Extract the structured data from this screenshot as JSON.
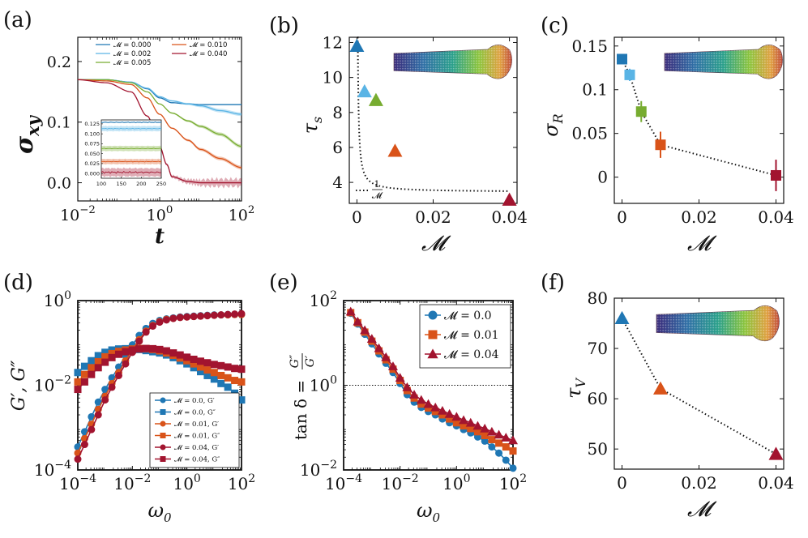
{
  "figure": {
    "panel_labels": [
      "(a)",
      "(b)",
      "(c)",
      "(d)",
      "(e)",
      "(f)"
    ]
  },
  "colors": {
    "m0": "#1f77b4",
    "m0002": "#5ab4e5",
    "m0005": "#77ac30",
    "m001": "#d95319",
    "m004": "#a2142f",
    "grid": "#333333"
  },
  "chart_data": [
    {
      "panel": "(a)",
      "type": "line",
      "xscale": "log",
      "xlim": [
        0.01,
        100
      ],
      "ylim": [
        -0.03,
        0.24
      ],
      "xlabel": "t",
      "ylabel": "σxy",
      "xticks": [
        {
          "v": 0.01,
          "base": "10",
          "exp": "−2"
        },
        {
          "v": 1,
          "base": "10",
          "exp": "0"
        },
        {
          "v": 100,
          "base": "10",
          "exp": "2"
        }
      ],
      "yticks": [
        {
          "v": 0.0,
          "label": "0.0"
        },
        {
          "v": 0.1,
          "label": "0.1"
        },
        {
          "v": 0.2,
          "label": "0.2"
        }
      ],
      "legend": [
        {
          "label": "𝓜 = 0.000",
          "color": "#1f77b4"
        },
        {
          "label": "𝓜 = 0.002",
          "color": "#5ab4e5"
        },
        {
          "label": "𝓜 = 0.005",
          "color": "#77ac30"
        },
        {
          "label": "𝓜 = 0.010",
          "color": "#d95319"
        },
        {
          "label": "𝓜 = 0.040",
          "color": "#a2142f"
        }
      ],
      "series": [
        {
          "name": "𝓜 = 0.000",
          "color": "#1f77b4",
          "x": [
            0.01,
            0.05,
            0.2,
            0.5,
            1,
            2,
            5,
            10,
            30,
            100
          ],
          "y": [
            0.17,
            0.17,
            0.166,
            0.155,
            0.14,
            0.132,
            0.13,
            0.129,
            0.129,
            0.129
          ]
        },
        {
          "name": "𝓜 = 0.002",
          "color": "#5ab4e5",
          "x": [
            0.01,
            0.05,
            0.2,
            0.5,
            1,
            2,
            5,
            10,
            30,
            100
          ],
          "y": [
            0.17,
            0.17,
            0.166,
            0.156,
            0.142,
            0.135,
            0.13,
            0.127,
            0.119,
            0.113
          ]
        },
        {
          "name": "𝓜 = 0.005",
          "color": "#77ac30",
          "x": [
            0.01,
            0.05,
            0.2,
            0.5,
            1,
            2,
            5,
            10,
            30,
            100
          ],
          "y": [
            0.17,
            0.17,
            0.165,
            0.15,
            0.13,
            0.115,
            0.102,
            0.093,
            0.08,
            0.06
          ]
        },
        {
          "name": "𝓜 = 0.010",
          "color": "#d95319",
          "x": [
            0.01,
            0.05,
            0.2,
            0.5,
            1,
            2,
            5,
            10,
            30,
            100
          ],
          "y": [
            0.17,
            0.168,
            0.162,
            0.14,
            0.113,
            0.09,
            0.07,
            0.055,
            0.04,
            0.025
          ]
        },
        {
          "name": "𝓜 = 0.040",
          "color": "#a2142f",
          "x": [
            0.01,
            0.05,
            0.2,
            0.5,
            1,
            1.5,
            2,
            5,
            10,
            30,
            100
          ],
          "y": [
            0.17,
            0.165,
            0.15,
            0.11,
            0.06,
            0.03,
            0.01,
            0.002,
            0.0,
            0.0,
            0.0
          ]
        }
      ],
      "inset": {
        "xlim": [
          100,
          250
        ],
        "ylim": [
          -0.012,
          0.135
        ],
        "xticks": [
          "100",
          "150",
          "200",
          "250"
        ],
        "xtick_values": [
          100,
          150,
          200,
          250
        ],
        "yticks": [
          "0.000",
          "0.025",
          "0.050",
          "0.075",
          "0.100",
          "0.125"
        ],
        "ytick_values": [
          0.0,
          0.025,
          0.05,
          0.075,
          0.1,
          0.125
        ],
        "series": [
          {
            "name": "𝓜 = 0.000",
            "color": "#1f77b4",
            "level": 0.129
          },
          {
            "name": "𝓜 = 0.002",
            "color": "#5ab4e5",
            "level": 0.113
          },
          {
            "name": "𝓜 = 0.005",
            "color": "#77ac30",
            "level": 0.063
          },
          {
            "name": "𝓜 = 0.010",
            "color": "#d95319",
            "level": 0.03
          },
          {
            "name": "𝓜 = 0.040",
            "color": "#a2142f",
            "level": 0.003
          }
        ]
      }
    },
    {
      "panel": "(b)",
      "type": "scatter",
      "xlim": [
        -0.002,
        0.042
      ],
      "ylim": [
        2.8,
        12.3
      ],
      "xlabel": "𝓜",
      "ylabel": "τ",
      "ylabel_sub": "s",
      "xticks": [
        {
          "v": 0,
          "label": "0"
        },
        {
          "v": 0.02,
          "label": "0.02"
        },
        {
          "v": 0.04,
          "label": "0.04"
        }
      ],
      "yticks": [
        {
          "v": 4,
          "label": "4"
        },
        {
          "v": 6,
          "label": "6"
        },
        {
          "v": 8,
          "label": "8"
        },
        {
          "v": 10,
          "label": "10"
        },
        {
          "v": 12,
          "label": "12"
        }
      ],
      "points": [
        {
          "x": 0.0,
          "y": 11.8,
          "color": "#1f77b4"
        },
        {
          "x": 0.002,
          "y": 9.2,
          "color": "#5ab4e5"
        },
        {
          "x": 0.005,
          "y": 8.7,
          "color": "#77ac30"
        },
        {
          "x": 0.01,
          "y": 5.8,
          "color": "#d95319"
        },
        {
          "x": 0.04,
          "y": 3.0,
          "color": "#a2142f"
        }
      ],
      "fit": {
        "label_num": "1",
        "label_den": "𝓜",
        "A": 0.00205,
        "B": 3.45,
        "x_from": 0.00018,
        "x_to": 0.04
      }
    },
    {
      "panel": "(c)",
      "type": "scatter",
      "xlim": [
        -0.002,
        0.042
      ],
      "ylim": [
        -0.03,
        0.16
      ],
      "xlabel": "𝓜",
      "ylabel": "σ",
      "ylabel_sub": "R",
      "xticks": [
        {
          "v": 0,
          "label": "0"
        },
        {
          "v": 0.02,
          "label": "0.02"
        },
        {
          "v": 0.04,
          "label": "0.04"
        }
      ],
      "yticks": [
        {
          "v": 0,
          "label": "0"
        },
        {
          "v": 0.05,
          "label": "0.05"
        },
        {
          "v": 0.1,
          "label": "0.1"
        },
        {
          "v": 0.15,
          "label": "0.15"
        }
      ],
      "points": [
        {
          "x": 0.0,
          "y": 0.135,
          "err": 0.003,
          "color": "#1f77b4"
        },
        {
          "x": 0.002,
          "y": 0.117,
          "err": 0.007,
          "color": "#5ab4e5"
        },
        {
          "x": 0.005,
          "y": 0.075,
          "err": 0.012,
          "color": "#77ac30"
        },
        {
          "x": 0.01,
          "y": 0.037,
          "err": 0.015,
          "color": "#d95319"
        },
        {
          "x": 0.04,
          "y": 0.002,
          "err": 0.018,
          "color": "#a2142f"
        }
      ]
    },
    {
      "panel": "(d)",
      "type": "line",
      "xscale": "log",
      "yscale": "log",
      "xlim": [
        0.0001,
        100
      ],
      "ylim": [
        0.0001,
        1
      ],
      "xlabel": "ω",
      "xlabel_sub": "0",
      "ylabel": "G′, G″",
      "xticks": [
        {
          "v": 0.0001,
          "base": "10",
          "exp": "−4"
        },
        {
          "v": 0.01,
          "base": "10",
          "exp": "−2"
        },
        {
          "v": 1,
          "base": "10",
          "exp": "0"
        },
        {
          "v": 100,
          "base": "10",
          "exp": "2"
        }
      ],
      "yticks": [
        {
          "v": 0.0001,
          "base": "10",
          "exp": "−4"
        },
        {
          "v": 0.01,
          "base": "10",
          "exp": "−2"
        },
        {
          "v": 1,
          "base": "10",
          "exp": "0"
        }
      ],
      "x": [
        0.0001,
        0.000178,
        0.000316,
        0.000562,
        0.001,
        0.00178,
        0.00316,
        0.00562,
        0.01,
        0.0178,
        0.0316,
        0.0562,
        0.1,
        0.178,
        0.316,
        0.562,
        1,
        1.78,
        3.16,
        5.62,
        10,
        17.8,
        31.6,
        56.2,
        100
      ],
      "series": [
        {
          "name": "𝓜 = 0.0, G′",
          "marker": "circle",
          "color": "#1f77b4",
          "y": [
            0.00035,
            0.0008,
            0.0018,
            0.004,
            0.008,
            0.015,
            0.027,
            0.05,
            0.09,
            0.15,
            0.22,
            0.29,
            0.34,
            0.37,
            0.39,
            0.41,
            0.42,
            0.43,
            0.44,
            0.45,
            0.46,
            0.46,
            0.47,
            0.47,
            0.47
          ]
        },
        {
          "name": "𝓜 = 0.0, G″",
          "marker": "square",
          "color": "#1f77b4",
          "y": [
            0.02,
            0.028,
            0.038,
            0.05,
            0.06,
            0.068,
            0.072,
            0.073,
            0.072,
            0.07,
            0.066,
            0.062,
            0.058,
            0.052,
            0.045,
            0.038,
            0.032,
            0.026,
            0.021,
            0.017,
            0.014,
            0.011,
            0.009,
            0.0065,
            0.0045
          ]
        },
        {
          "name": "𝓜 = 0.01, G′",
          "marker": "circle",
          "color": "#d95319",
          "y": [
            0.00025,
            0.00055,
            0.0012,
            0.0027,
            0.0055,
            0.011,
            0.02,
            0.038,
            0.07,
            0.12,
            0.19,
            0.26,
            0.32,
            0.36,
            0.38,
            0.4,
            0.41,
            0.42,
            0.43,
            0.44,
            0.45,
            0.46,
            0.46,
            0.47,
            0.47
          ]
        },
        {
          "name": "𝓜 = 0.01, G″",
          "marker": "square",
          "color": "#d95319",
          "y": [
            0.012,
            0.018,
            0.026,
            0.036,
            0.047,
            0.056,
            0.063,
            0.068,
            0.072,
            0.074,
            0.073,
            0.07,
            0.065,
            0.058,
            0.051,
            0.044,
            0.038,
            0.032,
            0.027,
            0.023,
            0.02,
            0.017,
            0.015,
            0.013,
            0.012
          ]
        },
        {
          "name": "𝓜 = 0.04, G′",
          "marker": "circle",
          "color": "#a2142f",
          "y": [
            0.00018,
            0.0004,
            0.0009,
            0.002,
            0.0045,
            0.009,
            0.017,
            0.032,
            0.06,
            0.11,
            0.18,
            0.25,
            0.31,
            0.35,
            0.38,
            0.4,
            0.41,
            0.42,
            0.43,
            0.44,
            0.45,
            0.46,
            0.47,
            0.48,
            0.49
          ]
        },
        {
          "name": "𝓜 = 0.04, G″",
          "marker": "square",
          "color": "#a2142f",
          "y": [
            0.008,
            0.012,
            0.018,
            0.026,
            0.035,
            0.045,
            0.054,
            0.062,
            0.068,
            0.072,
            0.074,
            0.073,
            0.07,
            0.065,
            0.058,
            0.052,
            0.046,
            0.041,
            0.037,
            0.034,
            0.031,
            0.029,
            0.027,
            0.025,
            0.024
          ]
        }
      ]
    },
    {
      "panel": "(e)",
      "type": "line",
      "xscale": "log",
      "yscale": "log",
      "xlim": [
        0.0001,
        100
      ],
      "ylim": [
        0.01,
        100
      ],
      "xlabel": "ω",
      "xlabel_sub": "0",
      "ylabel_left": "tan δ =",
      "ylabel_num": "G″",
      "ylabel_den": "G′",
      "reference_line": 1,
      "xticks": [
        {
          "v": 0.0001,
          "base": "10",
          "exp": "−4"
        },
        {
          "v": 0.01,
          "base": "10",
          "exp": "−2"
        },
        {
          "v": 1,
          "base": "10",
          "exp": "0"
        },
        {
          "v": 100,
          "base": "10",
          "exp": "2"
        }
      ],
      "yticks": [
        {
          "v": 0.01,
          "base": "10",
          "exp": "−2"
        },
        {
          "v": 1,
          "base": "10",
          "exp": "0"
        },
        {
          "v": 100,
          "base": "10",
          "exp": "2"
        }
      ],
      "x": [
        0.000178,
        0.000316,
        0.000562,
        0.001,
        0.00178,
        0.00316,
        0.00562,
        0.01,
        0.0178,
        0.0316,
        0.0562,
        0.1,
        0.178,
        0.316,
        0.562,
        1,
        1.78,
        3.16,
        5.62,
        10,
        17.8,
        31.6,
        56.2,
        100
      ],
      "series": [
        {
          "name": "𝓜 = 0.0",
          "marker": "circle",
          "color": "#1f77b4",
          "y": [
            50,
            28,
            16,
            9.5,
            5.5,
            3.3,
            2.0,
            1.1,
            0.6,
            0.4,
            0.3,
            0.24,
            0.2,
            0.16,
            0.13,
            0.11,
            0.09,
            0.075,
            0.06,
            0.048,
            0.035,
            0.025,
            0.017,
            0.011
          ]
        },
        {
          "name": "𝓜 = 0.01",
          "marker": "square",
          "color": "#d95319",
          "y": [
            52,
            30,
            18,
            11,
            6.5,
            4.0,
            2.4,
            1.3,
            0.75,
            0.5,
            0.36,
            0.29,
            0.24,
            0.2,
            0.16,
            0.13,
            0.11,
            0.095,
            0.08,
            0.065,
            0.052,
            0.043,
            0.035,
            0.028
          ]
        },
        {
          "name": "𝓜 = 0.04",
          "marker": "triangle",
          "color": "#a2142f",
          "y": [
            55,
            32,
            20,
            12.5,
            7.5,
            4.6,
            2.8,
            1.5,
            0.9,
            0.6,
            0.45,
            0.36,
            0.3,
            0.25,
            0.21,
            0.18,
            0.15,
            0.13,
            0.11,
            0.095,
            0.08,
            0.068,
            0.058,
            0.05
          ]
        }
      ]
    },
    {
      "panel": "(f)",
      "type": "scatter",
      "xlim": [
        -0.002,
        0.042
      ],
      "ylim": [
        46,
        80
      ],
      "xlabel": "𝓜",
      "ylabel": "τ",
      "ylabel_sub": "V",
      "xticks": [
        {
          "v": 0,
          "label": "0"
        },
        {
          "v": 0.02,
          "label": "0.02"
        },
        {
          "v": 0.04,
          "label": "0.04"
        }
      ],
      "yticks": [
        {
          "v": 50,
          "label": "50"
        },
        {
          "v": 60,
          "label": "60"
        },
        {
          "v": 70,
          "label": "70"
        },
        {
          "v": 80,
          "label": "80"
        }
      ],
      "points": [
        {
          "x": 0.0,
          "y": 76,
          "color": "#1f77b4"
        },
        {
          "x": 0.01,
          "y": 62,
          "color": "#d95319"
        },
        {
          "x": 0.04,
          "y": 49,
          "color": "#a2142f"
        }
      ]
    }
  ]
}
